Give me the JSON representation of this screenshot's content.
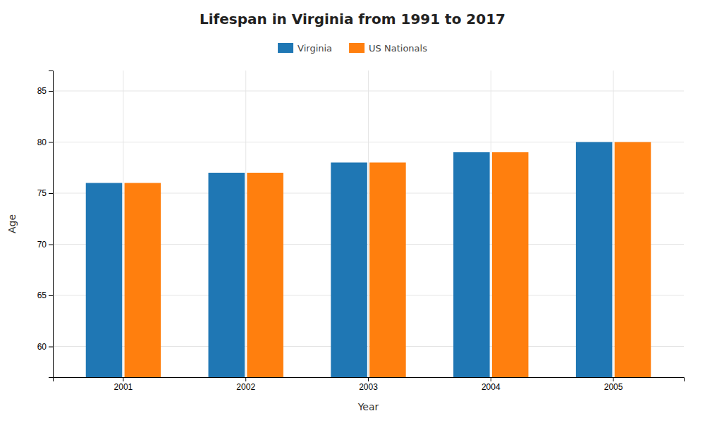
{
  "chart_data": {
    "type": "bar",
    "title": "Lifespan in Virginia from 1991 to 2017",
    "xlabel": "Year",
    "ylabel": "Age",
    "categories": [
      "2001",
      "2002",
      "2003",
      "2004",
      "2005"
    ],
    "series": [
      {
        "name": "Virginia",
        "values": [
          76,
          77,
          78,
          79,
          80
        ]
      },
      {
        "name": "US Nationals",
        "values": [
          76,
          77,
          78,
          79,
          80
        ]
      }
    ],
    "ylim": [
      57,
      87
    ],
    "yticks": [
      60,
      65,
      70,
      75,
      80,
      85
    ],
    "grid": true,
    "legend": "top"
  }
}
